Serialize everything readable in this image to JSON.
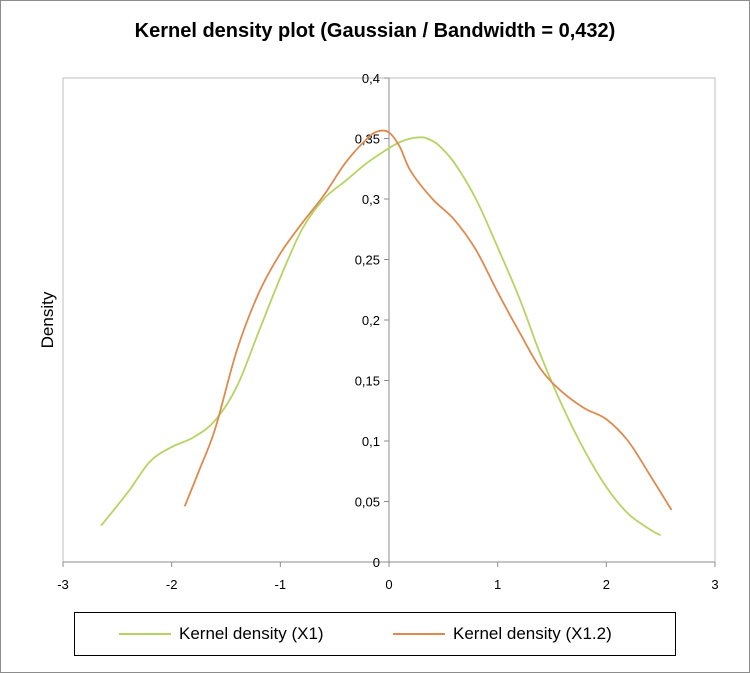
{
  "chart_data": {
    "type": "line",
    "title": "Kernel density plot (Gaussian / Bandwidth = 0,432)",
    "xlabel": "",
    "ylabel": "Density",
    "xlim": [
      -3,
      3
    ],
    "ylim": [
      0,
      0.4
    ],
    "x_ticks": [
      "-3",
      "-2",
      "-1",
      "0",
      "1",
      "2",
      "3"
    ],
    "y_ticks": [
      "0",
      "0,05",
      "0,1",
      "0,15",
      "0,2",
      "0,25",
      "0,3",
      "0,35",
      "0,4"
    ],
    "grid": false,
    "legend_position": "bottom",
    "series": [
      {
        "name": "Kernel density (X1)",
        "color": "#b5d462",
        "x": [
          -2.65,
          -2.4,
          -2.2,
          -2.0,
          -1.8,
          -1.6,
          -1.4,
          -1.2,
          -1.0,
          -0.8,
          -0.6,
          -0.4,
          -0.2,
          0.0,
          0.1,
          0.2,
          0.3,
          0.35,
          0.45,
          0.6,
          0.8,
          1.0,
          1.2,
          1.4,
          1.6,
          1.8,
          2.0,
          2.2,
          2.4,
          2.5
        ],
        "values": [
          0.03,
          0.058,
          0.083,
          0.095,
          0.103,
          0.117,
          0.145,
          0.19,
          0.235,
          0.275,
          0.3,
          0.315,
          0.33,
          0.342,
          0.347,
          0.35,
          0.351,
          0.35,
          0.345,
          0.33,
          0.3,
          0.26,
          0.218,
          0.17,
          0.128,
          0.092,
          0.062,
          0.04,
          0.027,
          0.022
        ]
      },
      {
        "name": "Kernel density (X1.2)",
        "color": "#de8a4f",
        "x": [
          -1.88,
          -1.75,
          -1.6,
          -1.4,
          -1.2,
          -1.0,
          -0.8,
          -0.6,
          -0.4,
          -0.2,
          -0.1,
          0.0,
          0.1,
          0.2,
          0.4,
          0.6,
          0.8,
          1.0,
          1.2,
          1.4,
          1.6,
          1.8,
          2.0,
          2.2,
          2.4,
          2.6
        ],
        "values": [
          0.046,
          0.075,
          0.11,
          0.175,
          0.222,
          0.255,
          0.28,
          0.303,
          0.33,
          0.35,
          0.356,
          0.355,
          0.343,
          0.323,
          0.3,
          0.283,
          0.258,
          0.223,
          0.19,
          0.159,
          0.14,
          0.127,
          0.118,
          0.1,
          0.072,
          0.043
        ]
      }
    ]
  }
}
